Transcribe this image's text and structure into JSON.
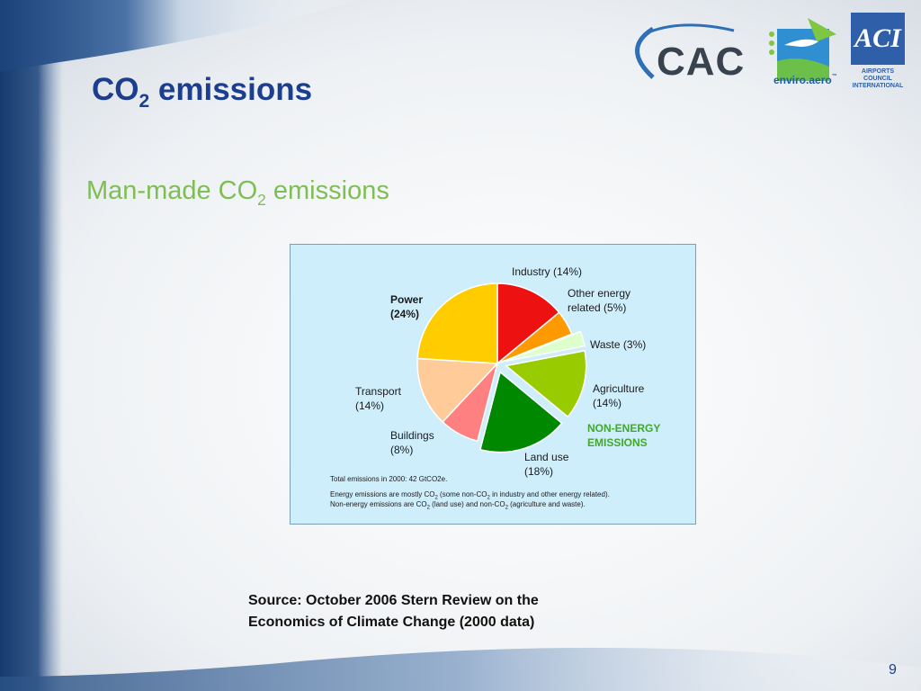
{
  "title": {
    "main": "CO",
    "sub": "2",
    "rest": " emissions"
  },
  "subtitle": {
    "main": "Man-made CO",
    "sub": "2",
    "rest": " emissions"
  },
  "logos": {
    "cac": "CAC",
    "enviro_www": "www.",
    "enviro": "enviro.aero",
    "enviro_tm": "™",
    "aci": "ACI",
    "aci_caption_1": "AIRPORTS COUNCIL",
    "aci_caption_2": "INTERNATIONAL"
  },
  "chart_data": {
    "type": "pie",
    "slices": [
      {
        "label": "Industry",
        "value": 14,
        "value_label": "(14%)",
        "color": "#ee1111",
        "group": "energy"
      },
      {
        "label_1": "Other energy",
        "label_2": "related",
        "value": 5,
        "value_label": "(5%)",
        "color": "#ff9900",
        "group": "energy"
      },
      {
        "label": "Waste",
        "value": 3,
        "value_label": "(3%)",
        "color": "#ddffcc",
        "group": "non-energy"
      },
      {
        "label": "Agriculture",
        "value": 14,
        "value_label": "(14%)",
        "color": "#99cc00",
        "group": "non-energy"
      },
      {
        "label": "Land use",
        "value": 18,
        "value_label": "(18%)",
        "color": "#008800",
        "group": "non-energy"
      },
      {
        "label": "Buildings",
        "value": 8,
        "value_label": "(8%)",
        "color": "#ff8080",
        "group": "energy"
      },
      {
        "label": "Transport",
        "value": 14,
        "value_label": "(14%)",
        "color": "#ffcc99",
        "group": "energy"
      },
      {
        "label": "Power",
        "value": 24,
        "value_label": "(24%)",
        "color": "#ffcc00",
        "group": "energy"
      }
    ],
    "annotation_1": "NON-ENERGY",
    "annotation_2": "EMISSIONS",
    "footnotes": {
      "total": "Total emissions in 2000: 42 GtCO2e.",
      "energy_a": "Energy emissions are mostly CO",
      "energy_sub1": "2",
      "energy_b": " (some non-CO",
      "energy_sub2": "2",
      "energy_c": " in industry and other energy related).",
      "nonenergy_a": "Non-energy emissions are CO",
      "nonenergy_sub1": "2",
      "nonenergy_b": " (land use) and non-CO",
      "nonenergy_sub2": "2",
      "nonenergy_c": " (agriculture and waste)."
    }
  },
  "source": {
    "line1": "Source: October 2006 Stern Review on the",
    "line2": "Economics of Climate Change (2000 data)"
  },
  "page_number": "9"
}
